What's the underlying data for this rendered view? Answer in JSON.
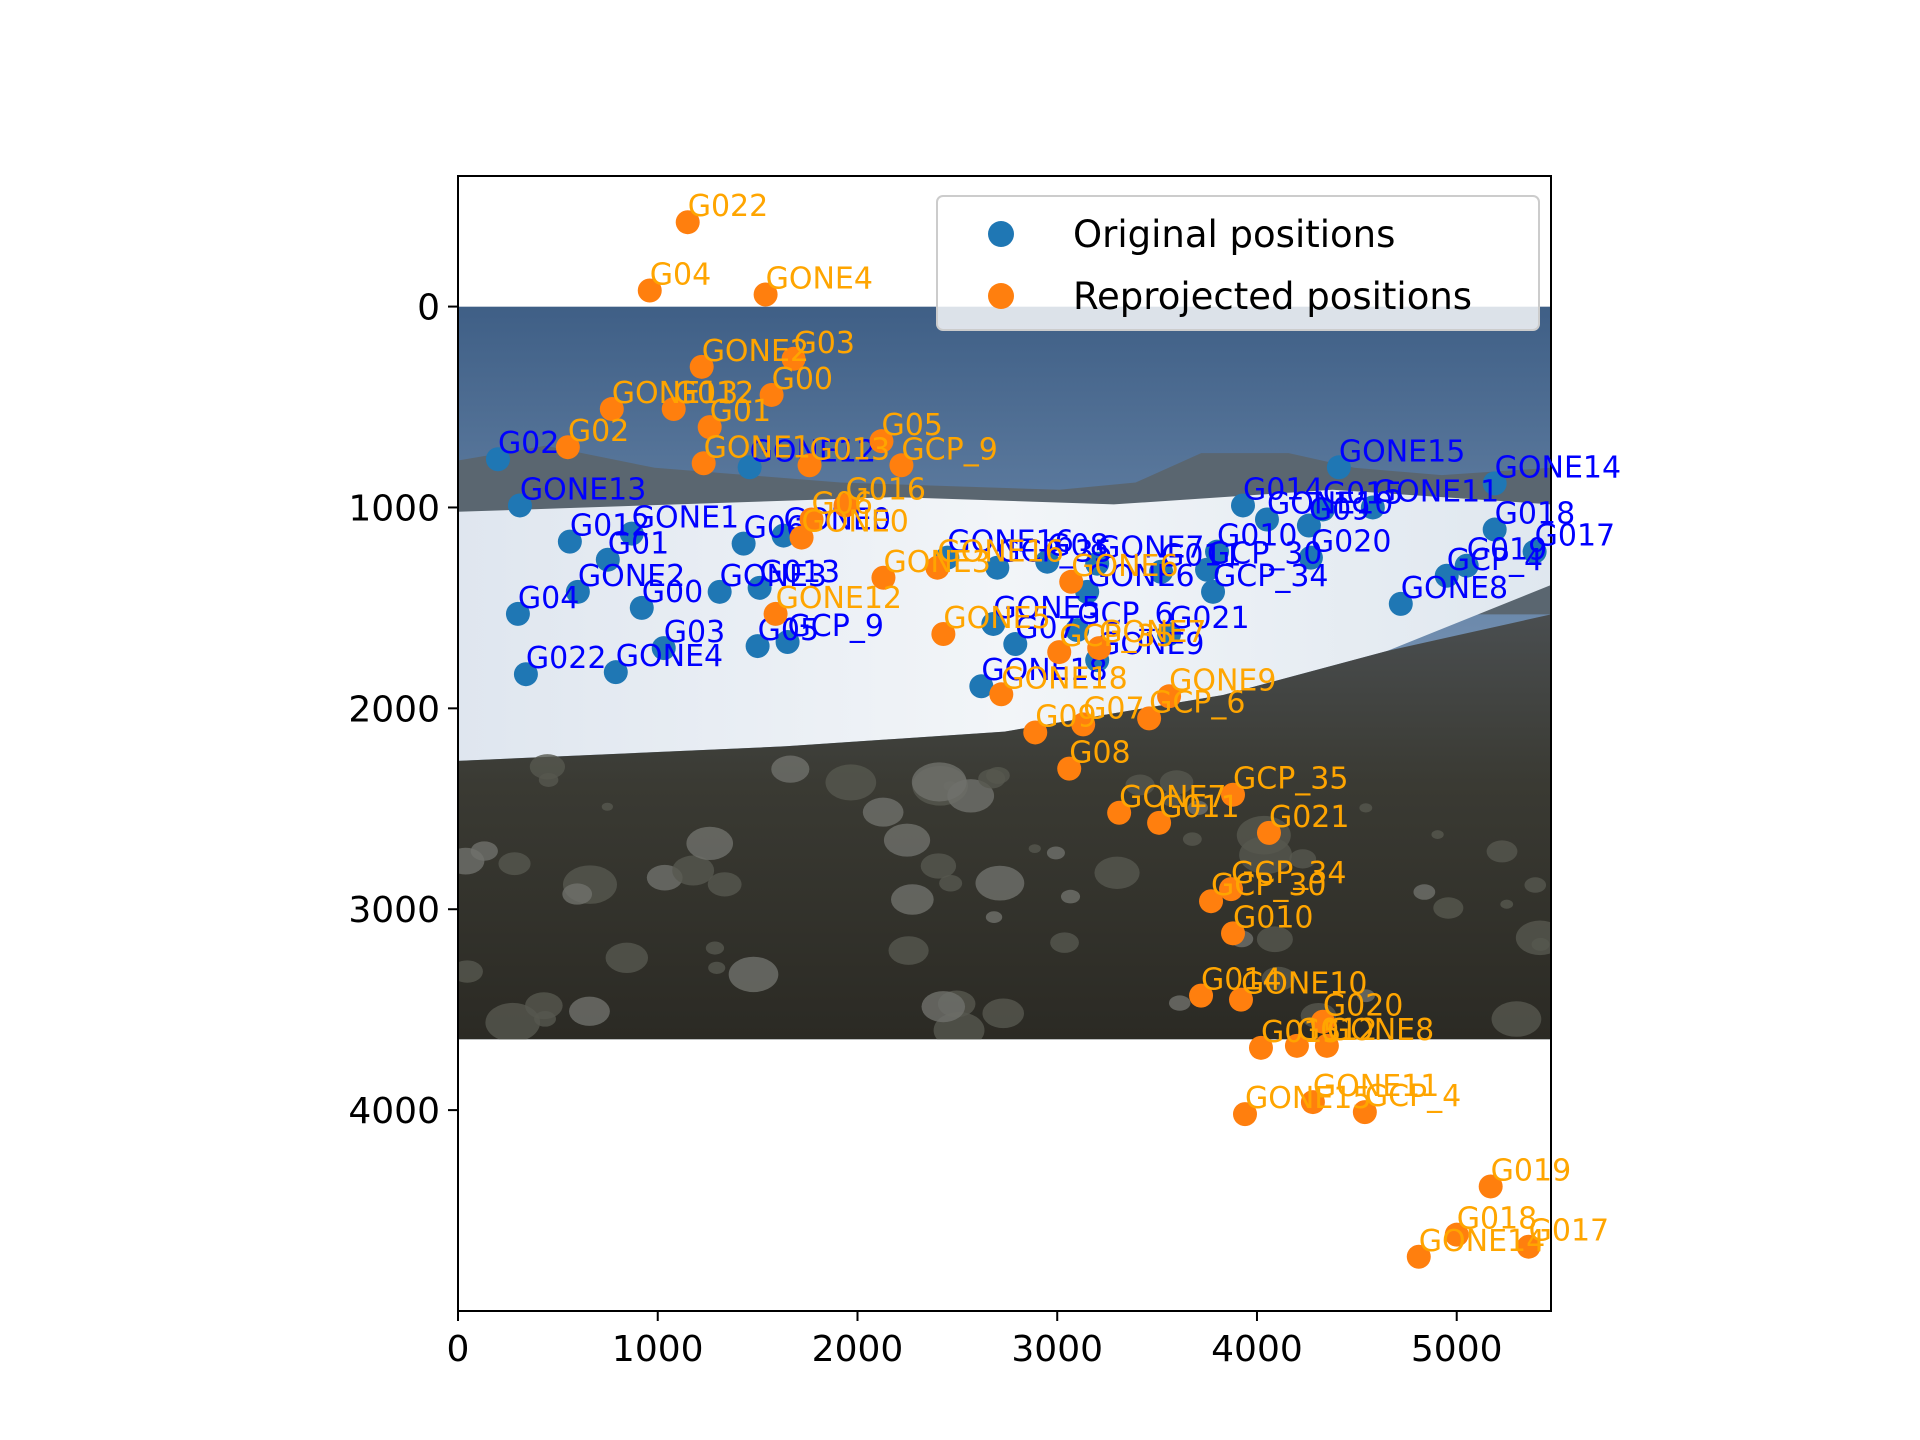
{
  "chart_data": {
    "type": "scatter",
    "title": "",
    "xlabel": "",
    "ylabel": "",
    "xlim": [
      0,
      5472
    ],
    "ylim": [
      5000,
      -650
    ],
    "y_inverted": true,
    "grid": false,
    "legend_position": "top-right",
    "background_image": {
      "extent_x": [
        0,
        5472
      ],
      "extent_y": [
        0,
        3648
      ]
    },
    "x_ticks": [
      "0",
      "1000",
      "2000",
      "3000",
      "4000",
      "5000"
    ],
    "y_ticks": [
      "0",
      "1000",
      "2000",
      "3000",
      "4000"
    ],
    "x_tick_values": [
      0,
      1000,
      2000,
      3000,
      4000,
      5000
    ],
    "y_tick_values": [
      0,
      1000,
      2000,
      3000,
      4000
    ],
    "series": [
      {
        "name": "Original positions",
        "color": "#1f77b4",
        "label_color": "#0000ff",
        "points": [
          {
            "label": "G02",
            "x": 200,
            "y": 760
          },
          {
            "label": "GONE13",
            "x": 310,
            "y": 990
          },
          {
            "label": "G012",
            "x": 560,
            "y": 1170
          },
          {
            "label": "G01",
            "x": 750,
            "y": 1260
          },
          {
            "label": "GONE1",
            "x": 870,
            "y": 1130
          },
          {
            "label": "GONE2",
            "x": 600,
            "y": 1420
          },
          {
            "label": "G04",
            "x": 300,
            "y": 1530
          },
          {
            "label": "G00",
            "x": 920,
            "y": 1500
          },
          {
            "label": "G03",
            "x": 1030,
            "y": 1700
          },
          {
            "label": "G022",
            "x": 340,
            "y": 1830
          },
          {
            "label": "GONE4",
            "x": 790,
            "y": 1820
          },
          {
            "label": "GONE3",
            "x": 1310,
            "y": 1420
          },
          {
            "label": "G06",
            "x": 1430,
            "y": 1180
          },
          {
            "label": "GONE0",
            "x": 1630,
            "y": 1140
          },
          {
            "label": "G013",
            "x": 1510,
            "y": 1400
          },
          {
            "label": "G05",
            "x": 1500,
            "y": 1690
          },
          {
            "label": "GCP_9",
            "x": 1650,
            "y": 1670
          },
          {
            "label": "GONE12",
            "x": 1460,
            "y": 800
          },
          {
            "label": "GONE16",
            "x": 2450,
            "y": 1250
          },
          {
            "label": "GCP_35",
            "x": 2700,
            "y": 1300
          },
          {
            "label": "G08",
            "x": 2950,
            "y": 1270
          },
          {
            "label": "GONE5",
            "x": 2680,
            "y": 1580
          },
          {
            "label": "GONE7",
            "x": 3200,
            "y": 1280
          },
          {
            "label": "GONE6",
            "x": 3150,
            "y": 1420
          },
          {
            "label": "GONE9",
            "x": 3200,
            "y": 1760
          },
          {
            "label": "GCP_6",
            "x": 3100,
            "y": 1610
          },
          {
            "label": "G021",
            "x": 3560,
            "y": 1630
          },
          {
            "label": "G07",
            "x": 2790,
            "y": 1680
          },
          {
            "label": "GONE18",
            "x": 2620,
            "y": 1890
          },
          {
            "label": "G011",
            "x": 3520,
            "y": 1320
          },
          {
            "label": "GCP_30",
            "x": 3750,
            "y": 1310
          },
          {
            "label": "G010",
            "x": 3800,
            "y": 1220
          },
          {
            "label": "GCP_34",
            "x": 3780,
            "y": 1420
          },
          {
            "label": "G014",
            "x": 3930,
            "y": 990
          },
          {
            "label": "GONE10",
            "x": 4050,
            "y": 1060
          },
          {
            "label": "G09",
            "x": 4260,
            "y": 1090
          },
          {
            "label": "G015",
            "x": 4330,
            "y": 1010
          },
          {
            "label": "GONE11",
            "x": 4580,
            "y": 1000
          },
          {
            "label": "G020",
            "x": 4270,
            "y": 1250
          },
          {
            "label": "GONE15",
            "x": 4410,
            "y": 800
          },
          {
            "label": "GONE14",
            "x": 5190,
            "y": 880
          },
          {
            "label": "G018",
            "x": 5190,
            "y": 1110
          },
          {
            "label": "G017",
            "x": 5390,
            "y": 1220
          },
          {
            "label": "G019",
            "x": 5050,
            "y": 1290
          },
          {
            "label": "GCP_4",
            "x": 4950,
            "y": 1340
          },
          {
            "label": "GONE8",
            "x": 4720,
            "y": 1480
          }
        ]
      },
      {
        "name": "Reprojected positions",
        "color": "#ff7f0e",
        "label_color": "#ffa500",
        "points": [
          {
            "label": "G022",
            "x": 1150,
            "y": -420
          },
          {
            "label": "G04",
            "x": 960,
            "y": -80
          },
          {
            "label": "GONE4",
            "x": 1540,
            "y": -60
          },
          {
            "label": "G03",
            "x": 1680,
            "y": 260
          },
          {
            "label": "GONE2",
            "x": 1220,
            "y": 300
          },
          {
            "label": "G00",
            "x": 1570,
            "y": 440
          },
          {
            "label": "GONE13",
            "x": 770,
            "y": 510
          },
          {
            "label": "G012",
            "x": 1080,
            "y": 510
          },
          {
            "label": "G01",
            "x": 1260,
            "y": 600
          },
          {
            "label": "G02",
            "x": 550,
            "y": 700
          },
          {
            "label": "GONE1",
            "x": 1230,
            "y": 780
          },
          {
            "label": "G013",
            "x": 1760,
            "y": 790
          },
          {
            "label": "G05",
            "x": 2120,
            "y": 670
          },
          {
            "label": "GCP_9",
            "x": 2220,
            "y": 790
          },
          {
            "label": "G016",
            "x": 1940,
            "y": 990
          },
          {
            "label": "G06",
            "x": 1770,
            "y": 1060
          },
          {
            "label": "GONE0",
            "x": 1720,
            "y": 1150
          },
          {
            "label": "GONE3",
            "x": 2130,
            "y": 1350
          },
          {
            "label": "GONE16",
            "x": 2400,
            "y": 1300
          },
          {
            "label": "GONE12",
            "x": 1590,
            "y": 1530
          },
          {
            "label": "GONE5",
            "x": 2430,
            "y": 1630
          },
          {
            "label": "GONE6",
            "x": 3070,
            "y": 1370
          },
          {
            "label": "GCP_35",
            "x": 3010,
            "y": 1720
          },
          {
            "label": "GONE7",
            "x": 3210,
            "y": 1700
          },
          {
            "label": "GONE18",
            "x": 2720,
            "y": 1930
          },
          {
            "label": "GONE9",
            "x": 3560,
            "y": 1940
          },
          {
            "label": "GCP_6",
            "x": 3460,
            "y": 2050
          },
          {
            "label": "G09",
            "x": 2890,
            "y": 2120
          },
          {
            "label": "G07",
            "x": 3130,
            "y": 2080
          },
          {
            "label": "G08",
            "x": 3060,
            "y": 2300
          },
          {
            "label": "GCP_35",
            "x": 3880,
            "y": 2430
          },
          {
            "label": "GONE7",
            "x": 3310,
            "y": 2520
          },
          {
            "label": "G011",
            "x": 3510,
            "y": 2570
          },
          {
            "label": "G021",
            "x": 4060,
            "y": 2620
          },
          {
            "label": "GCP_34",
            "x": 3870,
            "y": 2900
          },
          {
            "label": "GCP_30",
            "x": 3770,
            "y": 2960
          },
          {
            "label": "G010",
            "x": 3880,
            "y": 3120
          },
          {
            "label": "G014",
            "x": 3720,
            "y": 3430
          },
          {
            "label": "GONE10",
            "x": 3920,
            "y": 3450
          },
          {
            "label": "G020",
            "x": 4330,
            "y": 3560
          },
          {
            "label": "G015",
            "x": 4020,
            "y": 3690
          },
          {
            "label": "G012",
            "x": 4200,
            "y": 3680
          },
          {
            "label": "GONE8",
            "x": 4350,
            "y": 3680
          },
          {
            "label": "GONE11",
            "x": 4280,
            "y": 3960
          },
          {
            "label": "GONE15",
            "x": 3940,
            "y": 4020
          },
          {
            "label": "GCP_4",
            "x": 4540,
            "y": 4010
          },
          {
            "label": "G019",
            "x": 5170,
            "y": 4380
          },
          {
            "label": "G018",
            "x": 5000,
            "y": 4620
          },
          {
            "label": "GONE14",
            "x": 4810,
            "y": 4730
          },
          {
            "label": "G017",
            "x": 5360,
            "y": 4680
          }
        ]
      }
    ]
  }
}
